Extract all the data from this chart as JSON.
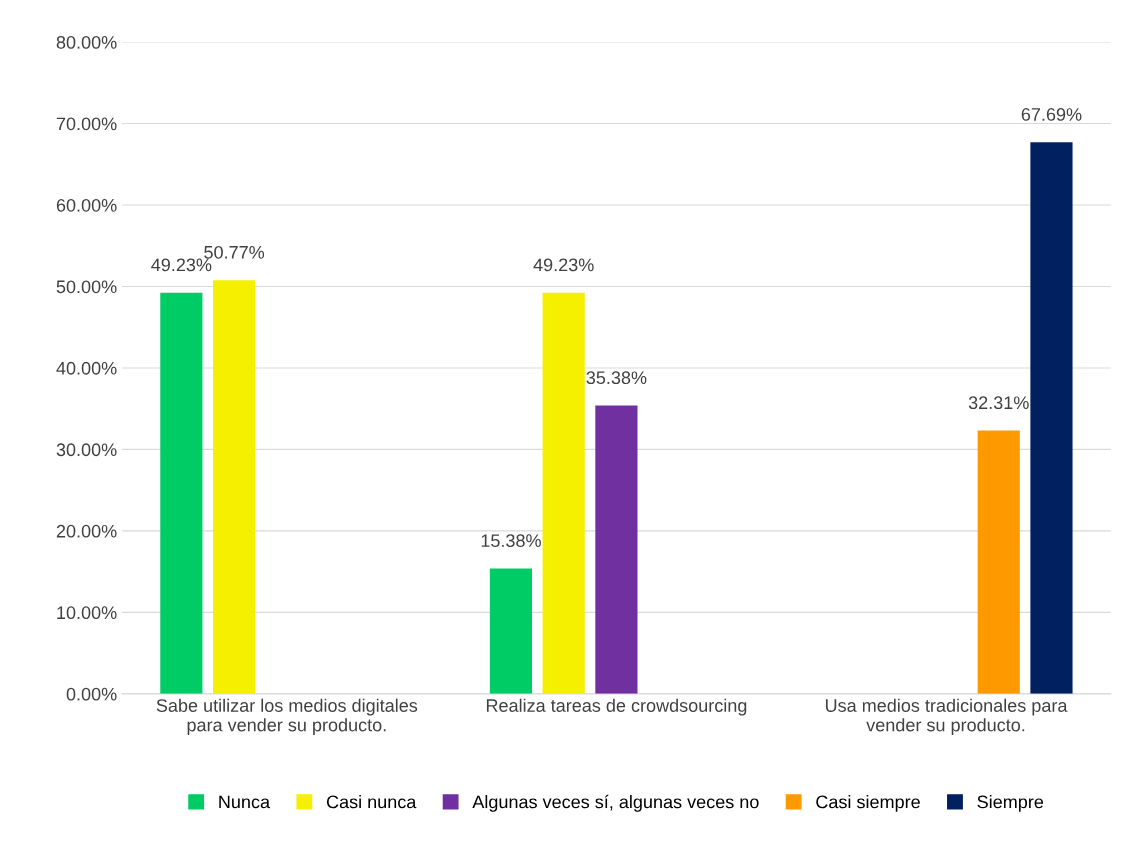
{
  "chart_data": {
    "type": "bar",
    "categories": [
      "Sabe utilizar los medios digitales para vender su producto.",
      "Realiza tareas de crowdsourcing",
      "Usa medios tradicionales para vender su producto."
    ],
    "series": [
      {
        "name": "Nunca",
        "color": "#00cc66",
        "values": [
          49.23,
          15.38,
          null
        ],
        "value_labels": [
          "49.23%",
          "15.38%",
          null
        ]
      },
      {
        "name": "Casi nunca",
        "color": "#f5ef00",
        "values": [
          50.77,
          49.23,
          null
        ],
        "value_labels": [
          "50.77%",
          "49.23%",
          null
        ]
      },
      {
        "name": "Algunas veces sí, algunas veces no",
        "color": "#7030a0",
        "values": [
          null,
          35.38,
          null
        ],
        "value_labels": [
          null,
          "35.38%",
          null
        ]
      },
      {
        "name": "Casi siempre",
        "color": "#ff9900",
        "values": [
          null,
          null,
          32.31
        ],
        "value_labels": [
          null,
          null,
          "32.31%"
        ]
      },
      {
        "name": "Siempre",
        "color": "#002060",
        "values": [
          null,
          null,
          67.69
        ],
        "value_labels": [
          null,
          null,
          "67.69%"
        ]
      }
    ],
    "ylim": [
      0,
      80
    ],
    "yticks": [
      {
        "value": 0,
        "label": "0.00%"
      },
      {
        "value": 10,
        "label": "10.00%"
      },
      {
        "value": 20,
        "label": "20.00%"
      },
      {
        "value": 30,
        "label": "30.00%"
      },
      {
        "value": 40,
        "label": "40.00%"
      },
      {
        "value": 50,
        "label": "50.00%"
      },
      {
        "value": 60,
        "label": "60.00%"
      },
      {
        "value": 70,
        "label": "70.00%"
      },
      {
        "value": 80,
        "label": "80.00%"
      }
    ],
    "grid": "y",
    "legend": "bottom"
  }
}
